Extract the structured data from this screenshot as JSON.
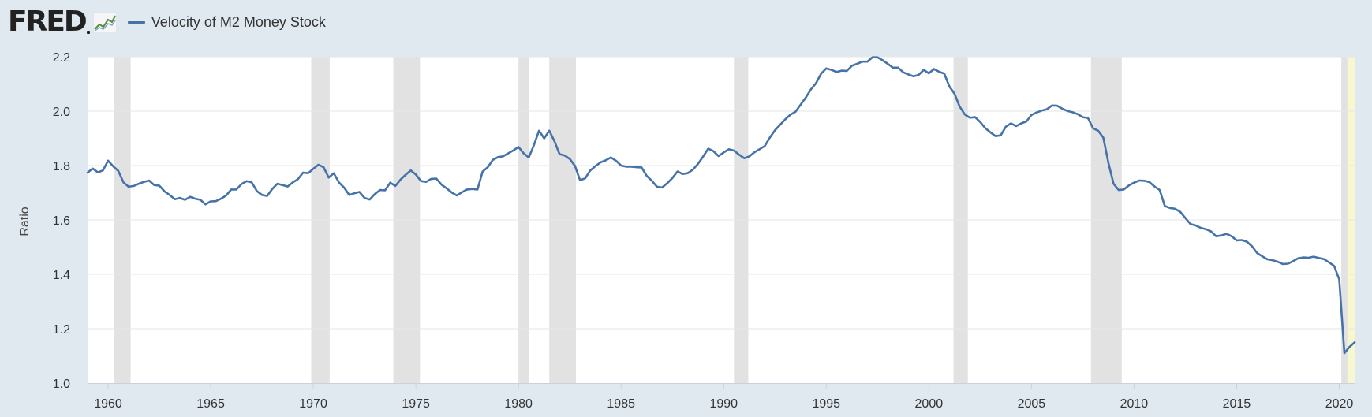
{
  "logo": {
    "text": "FRED",
    "icon": "line-graph-icon"
  },
  "colors": {
    "series": "#4572a7",
    "recession": "#e2e2e2",
    "forecast": "#f7f7d0",
    "background": "#e1e9f0"
  },
  "chart_data": {
    "type": "line",
    "title": "",
    "xlabel": "",
    "ylabel": "Ratio",
    "xlim": [
      1959.0,
      2020.75
    ],
    "ylim": [
      1.0,
      2.2
    ],
    "grid": true,
    "legend_position": "top-left",
    "x_ticks": [
      "1960",
      "1965",
      "1970",
      "1975",
      "1980",
      "1985",
      "1990",
      "1995",
      "2000",
      "2005",
      "2010",
      "2015",
      "2020"
    ],
    "y_ticks": [
      "1.0",
      "1.2",
      "1.4",
      "1.6",
      "1.8",
      "2.0",
      "2.2"
    ],
    "recessions": [
      [
        1960.3,
        1961.1
      ],
      [
        1969.9,
        1970.8
      ],
      [
        1973.9,
        1975.2
      ],
      [
        1980.0,
        1980.5
      ],
      [
        1981.5,
        1982.8
      ],
      [
        1990.5,
        1991.2
      ],
      [
        2001.2,
        2001.9
      ],
      [
        2007.9,
        2009.4
      ],
      [
        2020.1,
        2020.4
      ]
    ],
    "series": [
      {
        "name": "Velocity of M2 Money Stock",
        "x": [
          1959.0,
          1959.25,
          1959.5,
          1959.75,
          1960.0,
          1960.25,
          1960.5,
          1960.75,
          1961.0,
          1961.25,
          1961.5,
          1961.75,
          1962.0,
          1962.25,
          1962.5,
          1962.75,
          1963.0,
          1963.25,
          1963.5,
          1963.75,
          1964.0,
          1964.25,
          1964.5,
          1964.75,
          1965.0,
          1965.25,
          1965.5,
          1965.75,
          1966.0,
          1966.25,
          1966.5,
          1966.75,
          1967.0,
          1967.25,
          1967.5,
          1967.75,
          1968.0,
          1968.25,
          1968.5,
          1968.75,
          1969.0,
          1969.25,
          1969.5,
          1969.75,
          1970.0,
          1970.25,
          1970.5,
          1970.75,
          1971.0,
          1971.25,
          1971.5,
          1971.75,
          1972.0,
          1972.25,
          1972.5,
          1972.75,
          1973.0,
          1973.25,
          1973.5,
          1973.75,
          1974.0,
          1974.25,
          1974.5,
          1974.75,
          1975.0,
          1975.25,
          1975.5,
          1975.75,
          1976.0,
          1976.25,
          1976.5,
          1976.75,
          1977.0,
          1977.25,
          1977.5,
          1977.75,
          1978.0,
          1978.25,
          1978.5,
          1978.75,
          1979.0,
          1979.25,
          1979.5,
          1979.75,
          1980.0,
          1980.25,
          1980.5,
          1980.75,
          1981.0,
          1981.25,
          1981.5,
          1981.75,
          1982.0,
          1982.25,
          1982.5,
          1982.75,
          1983.0,
          1983.25,
          1983.5,
          1983.75,
          1984.0,
          1984.25,
          1984.5,
          1984.75,
          1985.0,
          1985.25,
          1985.5,
          1985.75,
          1986.0,
          1986.25,
          1986.5,
          1986.75,
          1987.0,
          1987.25,
          1987.5,
          1987.75,
          1988.0,
          1988.25,
          1988.5,
          1988.75,
          1989.0,
          1989.25,
          1989.5,
          1989.75,
          1990.0,
          1990.25,
          1990.5,
          1990.75,
          1991.0,
          1991.25,
          1991.5,
          1991.75,
          1992.0,
          1992.25,
          1992.5,
          1992.75,
          1993.0,
          1993.25,
          1993.5,
          1993.75,
          1994.0,
          1994.25,
          1994.5,
          1994.75,
          1995.0,
          1995.25,
          1995.5,
          1995.75,
          1996.0,
          1996.25,
          1996.5,
          1996.75,
          1997.0,
          1997.25,
          1997.5,
          1997.75,
          1998.0,
          1998.25,
          1998.5,
          1998.75,
          1999.0,
          1999.25,
          1999.5,
          1999.75,
          2000.0,
          2000.25,
          2000.5,
          2000.75,
          2001.0,
          2001.25,
          2001.5,
          2001.75,
          2002.0,
          2002.25,
          2002.5,
          2002.75,
          2003.0,
          2003.25,
          2003.5,
          2003.75,
          2004.0,
          2004.25,
          2004.5,
          2004.75,
          2005.0,
          2005.25,
          2005.5,
          2005.75,
          2006.0,
          2006.25,
          2006.5,
          2006.75,
          2007.0,
          2007.25,
          2007.5,
          2007.75,
          2008.0,
          2008.25,
          2008.5,
          2008.75,
          2009.0,
          2009.25,
          2009.5,
          2009.75,
          2010.0,
          2010.25,
          2010.5,
          2010.75,
          2011.0,
          2011.25,
          2011.5,
          2011.75,
          2012.0,
          2012.25,
          2012.5,
          2012.75,
          2013.0,
          2013.25,
          2013.5,
          2013.75,
          2014.0,
          2014.25,
          2014.5,
          2014.75,
          2015.0,
          2015.25,
          2015.5,
          2015.75,
          2016.0,
          2016.25,
          2016.5,
          2016.75,
          2017.0,
          2017.25,
          2017.5,
          2017.75,
          2018.0,
          2018.25,
          2018.5,
          2018.75,
          2019.0,
          2019.25,
          2019.5,
          2019.75,
          2020.0,
          2020.25,
          2020.5,
          2020.75
        ],
        "values": [
          1.774,
          1.789,
          1.775,
          1.782,
          1.818,
          1.797,
          1.78,
          1.738,
          1.722,
          1.725,
          1.733,
          1.74,
          1.745,
          1.728,
          1.726,
          1.705,
          1.692,
          1.676,
          1.681,
          1.674,
          1.685,
          1.678,
          1.674,
          1.657,
          1.668,
          1.669,
          1.678,
          1.69,
          1.712,
          1.712,
          1.732,
          1.743,
          1.738,
          1.706,
          1.692,
          1.688,
          1.714,
          1.733,
          1.728,
          1.723,
          1.738,
          1.75,
          1.774,
          1.772,
          1.788,
          1.803,
          1.794,
          1.756,
          1.772,
          1.738,
          1.719,
          1.692,
          1.698,
          1.703,
          1.681,
          1.675,
          1.695,
          1.71,
          1.709,
          1.737,
          1.725,
          1.748,
          1.766,
          1.782,
          1.767,
          1.743,
          1.74,
          1.751,
          1.752,
          1.73,
          1.716,
          1.701,
          1.69,
          1.702,
          1.712,
          1.714,
          1.712,
          1.778,
          1.794,
          1.821,
          1.831,
          1.834,
          1.845,
          1.856,
          1.868,
          1.845,
          1.83,
          1.875,
          1.928,
          1.9,
          1.928,
          1.89,
          1.842,
          1.837,
          1.824,
          1.799,
          1.746,
          1.753,
          1.782,
          1.798,
          1.812,
          1.819,
          1.83,
          1.818,
          1.8,
          1.796,
          1.796,
          1.794,
          1.793,
          1.762,
          1.744,
          1.722,
          1.719,
          1.735,
          1.754,
          1.778,
          1.769,
          1.772,
          1.785,
          1.806,
          1.833,
          1.862,
          1.853,
          1.835,
          1.848,
          1.86,
          1.855,
          1.84,
          1.827,
          1.834,
          1.849,
          1.86,
          1.872,
          1.903,
          1.93,
          1.95,
          1.97,
          1.987,
          1.998,
          2.024,
          2.05,
          2.08,
          2.103,
          2.138,
          2.157,
          2.152,
          2.144,
          2.149,
          2.148,
          2.167,
          2.174,
          2.182,
          2.182,
          2.198,
          2.198,
          2.187,
          2.174,
          2.16,
          2.16,
          2.143,
          2.135,
          2.128,
          2.133,
          2.152,
          2.139,
          2.155,
          2.145,
          2.138,
          2.091,
          2.064,
          2.017,
          1.988,
          1.976,
          1.978,
          1.96,
          1.937,
          1.922,
          1.908,
          1.911,
          1.943,
          1.955,
          1.945,
          1.955,
          1.962,
          1.986,
          1.995,
          2.002,
          2.007,
          2.021,
          2.02,
          2.009,
          2.001,
          1.996,
          1.989,
          1.978,
          1.975,
          1.937,
          1.928,
          1.903,
          1.81,
          1.733,
          1.71,
          1.712,
          1.727,
          1.737,
          1.745,
          1.744,
          1.739,
          1.723,
          1.71,
          1.651,
          1.644,
          1.641,
          1.63,
          1.607,
          1.585,
          1.58,
          1.571,
          1.566,
          1.558,
          1.54,
          1.543,
          1.549,
          1.54,
          1.525,
          1.526,
          1.52,
          1.503,
          1.478,
          1.466,
          1.455,
          1.452,
          1.446,
          1.438,
          1.439,
          1.448,
          1.459,
          1.462,
          1.461,
          1.465,
          1.46,
          1.456,
          1.444,
          1.431,
          1.381,
          1.11,
          1.133,
          1.15
        ]
      }
    ]
  }
}
